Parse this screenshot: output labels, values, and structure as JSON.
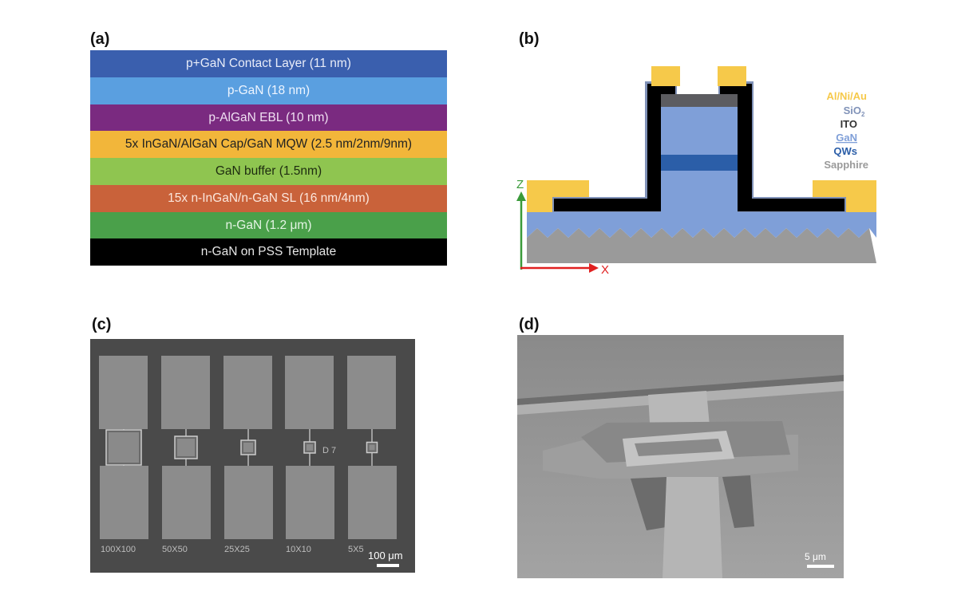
{
  "panels": {
    "a": {
      "label": "(a)",
      "layers": [
        {
          "text": "p+GaN Contact Layer (11 nm)",
          "color": "#3a5fae",
          "text_color": "#e8ecf8"
        },
        {
          "text": "p-GaN (18 nm)",
          "color": "#5a9fe0",
          "text_color": "#eef5ff"
        },
        {
          "text": "p-AlGaN EBL (10 nm)",
          "color": "#7a2a80",
          "text_color": "#f0e0f2"
        },
        {
          "text": "5x InGaN/AlGaN Cap/GaN MQW (2.5 nm/2nm/9nm)",
          "color": "#f2b63a",
          "text_color": "#222222"
        },
        {
          "text": "GaN buffer (1.5nm)",
          "color": "#8fc550",
          "text_color": "#1d2b10"
        },
        {
          "text": "15x n-InGaN/n-GaN SL (16 nm/4nm)",
          "color": "#c9623a",
          "text_color": "#fbe6dc"
        },
        {
          "text": "n-GaN (1.2 μm)",
          "color": "#4aa04a",
          "text_color": "#e6f5e6"
        },
        {
          "text": "n-GaN on PSS Template",
          "color": "#000000",
          "text_color": "#e6e6e6"
        }
      ]
    },
    "b": {
      "label": "(b)",
      "legend": [
        {
          "text": "Al/Ni/Au",
          "color": "#f6c94a"
        },
        {
          "text": "SiO",
          "sub": "2",
          "color": "#8092b8"
        },
        {
          "text": "ITO",
          "color": "#333333"
        },
        {
          "text": "GaN",
          "color": "#7f9fd8"
        },
        {
          "text": "QWs",
          "color": "#2b5ea8"
        },
        {
          "text": "Sapphire",
          "color": "#9a9a9a"
        }
      ],
      "axis_z": "Z",
      "axis_x": "X"
    },
    "c": {
      "label": "(c)",
      "device_labels": [
        "100X100",
        "50X50",
        "25X25",
        "10X10",
        "5X5"
      ],
      "die_mark": "D 7",
      "scale_bar": "100 μm"
    },
    "d": {
      "label": "(d)",
      "scale_bar": "5 μm"
    }
  }
}
